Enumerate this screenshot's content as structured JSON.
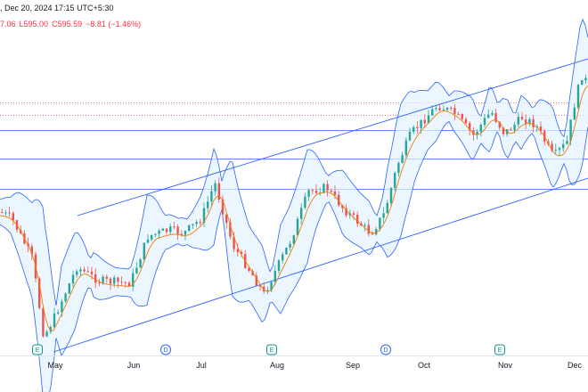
{
  "header": {
    "datetime": ", Dec 20, 2024 17:15 UTC+5:30",
    "open_fragment": "7.06",
    "low": "L595.00",
    "close": "C595.59",
    "change": "−8.81 (−1.46%)"
  },
  "x_axis": {
    "labels": [
      "May",
      "Jun",
      "Jul",
      "Aug",
      "Sep",
      "Oct",
      "Nov",
      "Dec"
    ]
  },
  "events": [
    {
      "month": "May",
      "type": "earnings",
      "letter": "E"
    },
    {
      "month": "Jun",
      "type": "dividend",
      "letter": "D"
    },
    {
      "month": "Aug",
      "type": "earnings",
      "letter": "E"
    },
    {
      "month": "Sep",
      "type": "dividend",
      "letter": "D"
    },
    {
      "month": "Nov",
      "type": "earnings",
      "letter": "E"
    }
  ],
  "colors": {
    "up": "#26a69a",
    "down": "#ef5350",
    "bollinger": "#2962ff",
    "bollinger_fill": "#e3f2fd",
    "ma": "#f57c00",
    "channel": "#2962ff",
    "levels": "#2962ff",
    "dotted": "#f23645",
    "earnings": "#089981",
    "dividend": "#2962ff"
  },
  "chart_data": {
    "type": "candlestick",
    "overlays": [
      "bollinger bands",
      "moving average",
      "parallel channel",
      "horizontal levels"
    ],
    "grid": false,
    "title": "",
    "xlabel": "",
    "ylabel": ""
  }
}
